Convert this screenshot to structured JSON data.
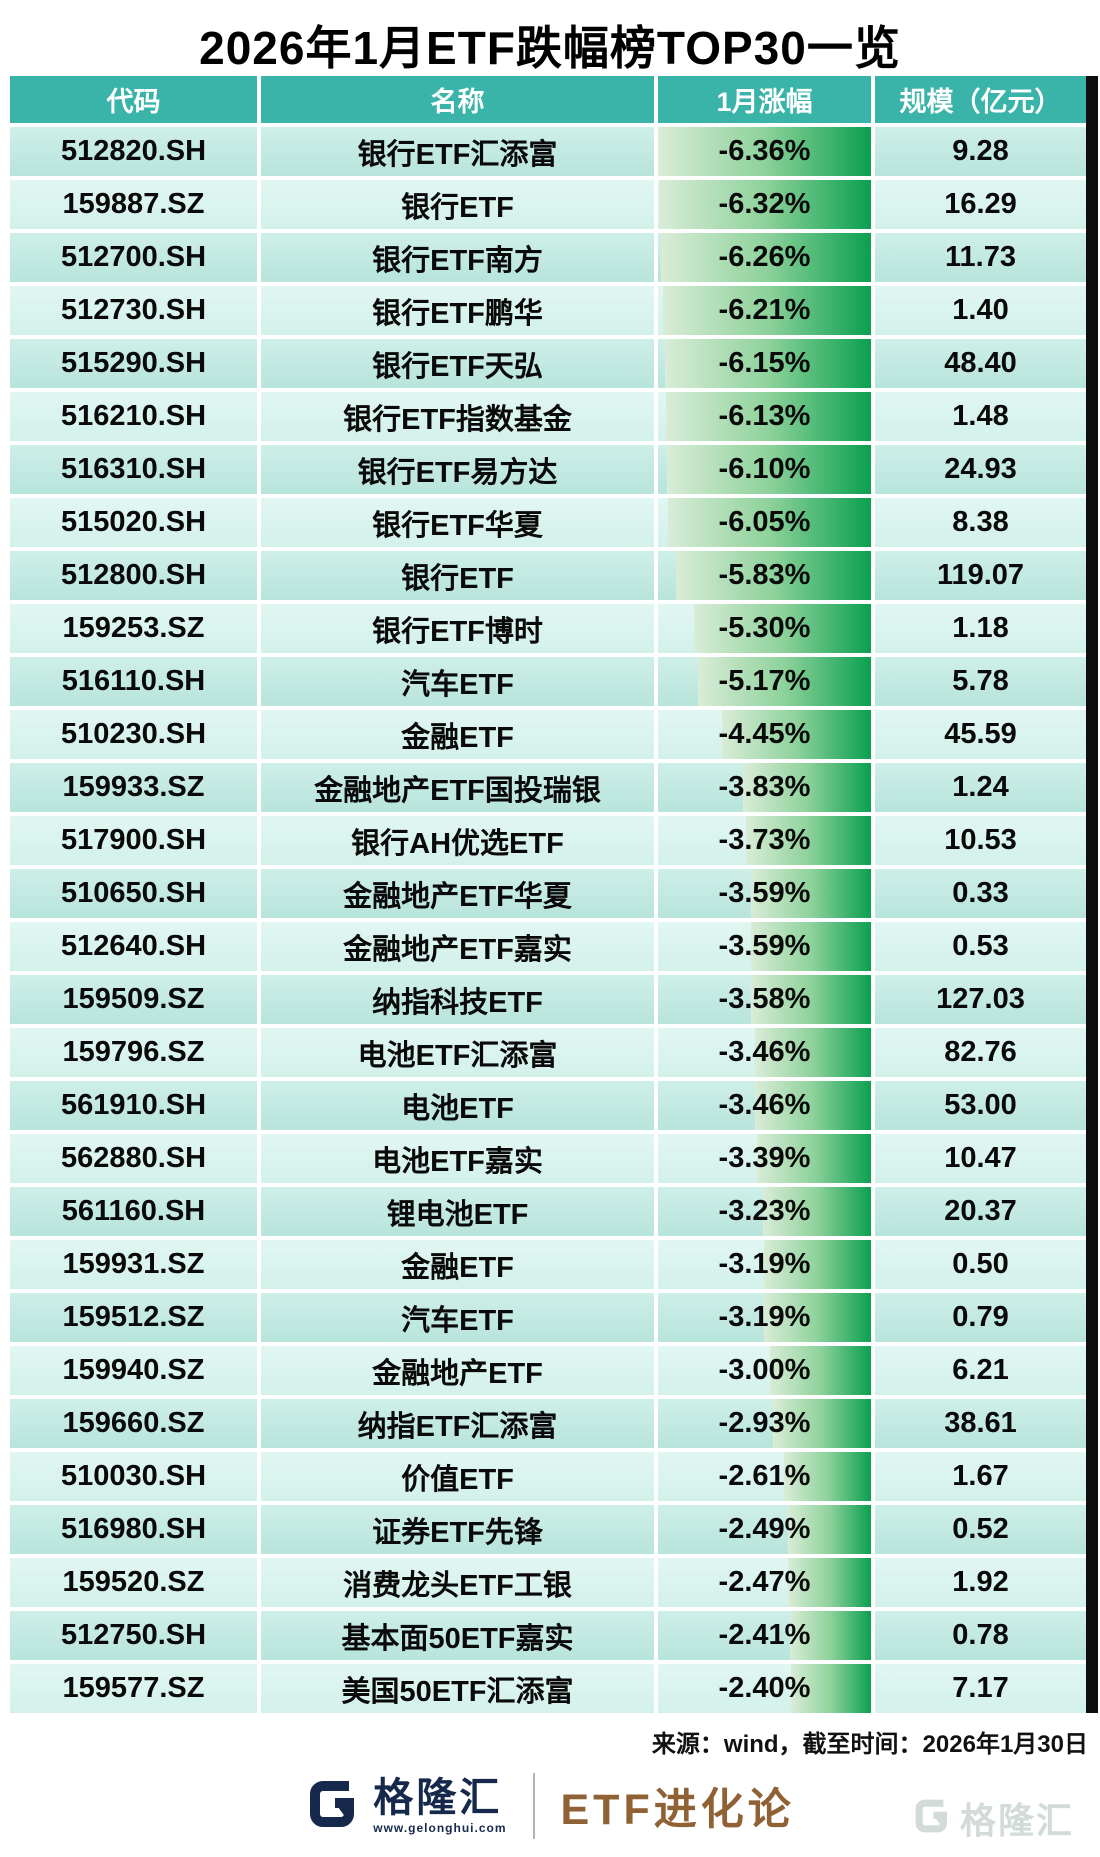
{
  "title": "2026年1月ETF跌幅榜TOP30一览",
  "chart_data": {
    "type": "table",
    "title": "2026年1月ETF跌幅榜TOP30一览",
    "columns": [
      "代码",
      "名称",
      "1月涨幅",
      "规模（亿元）"
    ],
    "bar": {
      "column": "1月涨幅",
      "max_abs": 6.36,
      "direction": "right-anchored",
      "gradient": [
        "#d9ecd7",
        "#0ba04f"
      ]
    },
    "rows": [
      {
        "code": "512820.SH",
        "name": "银行ETF汇添富",
        "pct": -6.36,
        "pct_label": "-6.36%",
        "scale": "9.28"
      },
      {
        "code": "159887.SZ",
        "name": "银行ETF",
        "pct": -6.32,
        "pct_label": "-6.32%",
        "scale": "16.29"
      },
      {
        "code": "512700.SH",
        "name": "银行ETF南方",
        "pct": -6.26,
        "pct_label": "-6.26%",
        "scale": "11.73"
      },
      {
        "code": "512730.SH",
        "name": "银行ETF鹏华",
        "pct": -6.21,
        "pct_label": "-6.21%",
        "scale": "1.40"
      },
      {
        "code": "515290.SH",
        "name": "银行ETF天弘",
        "pct": -6.15,
        "pct_label": "-6.15%",
        "scale": "48.40"
      },
      {
        "code": "516210.SH",
        "name": "银行ETF指数基金",
        "pct": -6.13,
        "pct_label": "-6.13%",
        "scale": "1.48"
      },
      {
        "code": "516310.SH",
        "name": "银行ETF易方达",
        "pct": -6.1,
        "pct_label": "-6.10%",
        "scale": "24.93"
      },
      {
        "code": "515020.SH",
        "name": "银行ETF华夏",
        "pct": -6.05,
        "pct_label": "-6.05%",
        "scale": "8.38"
      },
      {
        "code": "512800.SH",
        "name": "银行ETF",
        "pct": -5.83,
        "pct_label": "-5.83%",
        "scale": "119.07"
      },
      {
        "code": "159253.SZ",
        "name": "银行ETF博时",
        "pct": -5.3,
        "pct_label": "-5.30%",
        "scale": "1.18"
      },
      {
        "code": "516110.SH",
        "name": "汽车ETF",
        "pct": -5.17,
        "pct_label": "-5.17%",
        "scale": "5.78"
      },
      {
        "code": "510230.SH",
        "name": "金融ETF",
        "pct": -4.45,
        "pct_label": "-4.45%",
        "scale": "45.59"
      },
      {
        "code": "159933.SZ",
        "name": "金融地产ETF国投瑞银",
        "pct": -3.83,
        "pct_label": "-3.83%",
        "scale": "1.24"
      },
      {
        "code": "517900.SH",
        "name": "银行AH优选ETF",
        "pct": -3.73,
        "pct_label": "-3.73%",
        "scale": "10.53"
      },
      {
        "code": "510650.SH",
        "name": "金融地产ETF华夏",
        "pct": -3.59,
        "pct_label": "-3.59%",
        "scale": "0.33"
      },
      {
        "code": "512640.SH",
        "name": "金融地产ETF嘉实",
        "pct": -3.59,
        "pct_label": "-3.59%",
        "scale": "0.53"
      },
      {
        "code": "159509.SZ",
        "name": "纳指科技ETF",
        "pct": -3.58,
        "pct_label": "-3.58%",
        "scale": "127.03"
      },
      {
        "code": "159796.SZ",
        "name": "电池ETF汇添富",
        "pct": -3.46,
        "pct_label": "-3.46%",
        "scale": "82.76"
      },
      {
        "code": "561910.SH",
        "name": "电池ETF",
        "pct": -3.46,
        "pct_label": "-3.46%",
        "scale": "53.00"
      },
      {
        "code": "562880.SH",
        "name": "电池ETF嘉实",
        "pct": -3.39,
        "pct_label": "-3.39%",
        "scale": "10.47"
      },
      {
        "code": "561160.SH",
        "name": "锂电池ETF",
        "pct": -3.23,
        "pct_label": "-3.23%",
        "scale": "20.37"
      },
      {
        "code": "159931.SZ",
        "name": "金融ETF",
        "pct": -3.19,
        "pct_label": "-3.19%",
        "scale": "0.50"
      },
      {
        "code": "159512.SZ",
        "name": "汽车ETF",
        "pct": -3.19,
        "pct_label": "-3.19%",
        "scale": "0.79"
      },
      {
        "code": "159940.SZ",
        "name": "金融地产ETF",
        "pct": -3.0,
        "pct_label": "-3.00%",
        "scale": "6.21"
      },
      {
        "code": "159660.SZ",
        "name": "纳指ETF汇添富",
        "pct": -2.93,
        "pct_label": "-2.93%",
        "scale": "38.61"
      },
      {
        "code": "510030.SH",
        "name": "价值ETF",
        "pct": -2.61,
        "pct_label": "-2.61%",
        "scale": "1.67"
      },
      {
        "code": "516980.SH",
        "name": "证券ETF先锋",
        "pct": -2.49,
        "pct_label": "-2.49%",
        "scale": "0.52"
      },
      {
        "code": "159520.SZ",
        "name": "消费龙头ETF工银",
        "pct": -2.47,
        "pct_label": "-2.47%",
        "scale": "1.92"
      },
      {
        "code": "512750.SH",
        "name": "基本面50ETF嘉实",
        "pct": -2.41,
        "pct_label": "-2.41%",
        "scale": "0.78"
      },
      {
        "code": "159577.SZ",
        "name": "美国50ETF汇添富",
        "pct": -2.4,
        "pct_label": "-2.40%",
        "scale": "7.17"
      }
    ]
  },
  "footer": {
    "source": "来源：wind，截至时间：2026年1月30日",
    "brand_name": "格隆汇",
    "brand_url": "www.gelonghui.com",
    "column_name": "ETF进化论",
    "watermark": "格隆汇"
  },
  "colors": {
    "header_bg": "#3ab4a8",
    "row_dark": "#bfe8e0",
    "row_light": "#d9f3ee",
    "bar_start": "#d9ecd7",
    "bar_end": "#0ba04f",
    "table_edge": "#0e0e0e",
    "brand_navy": "#16294d",
    "column_brown": "#8f6134"
  }
}
